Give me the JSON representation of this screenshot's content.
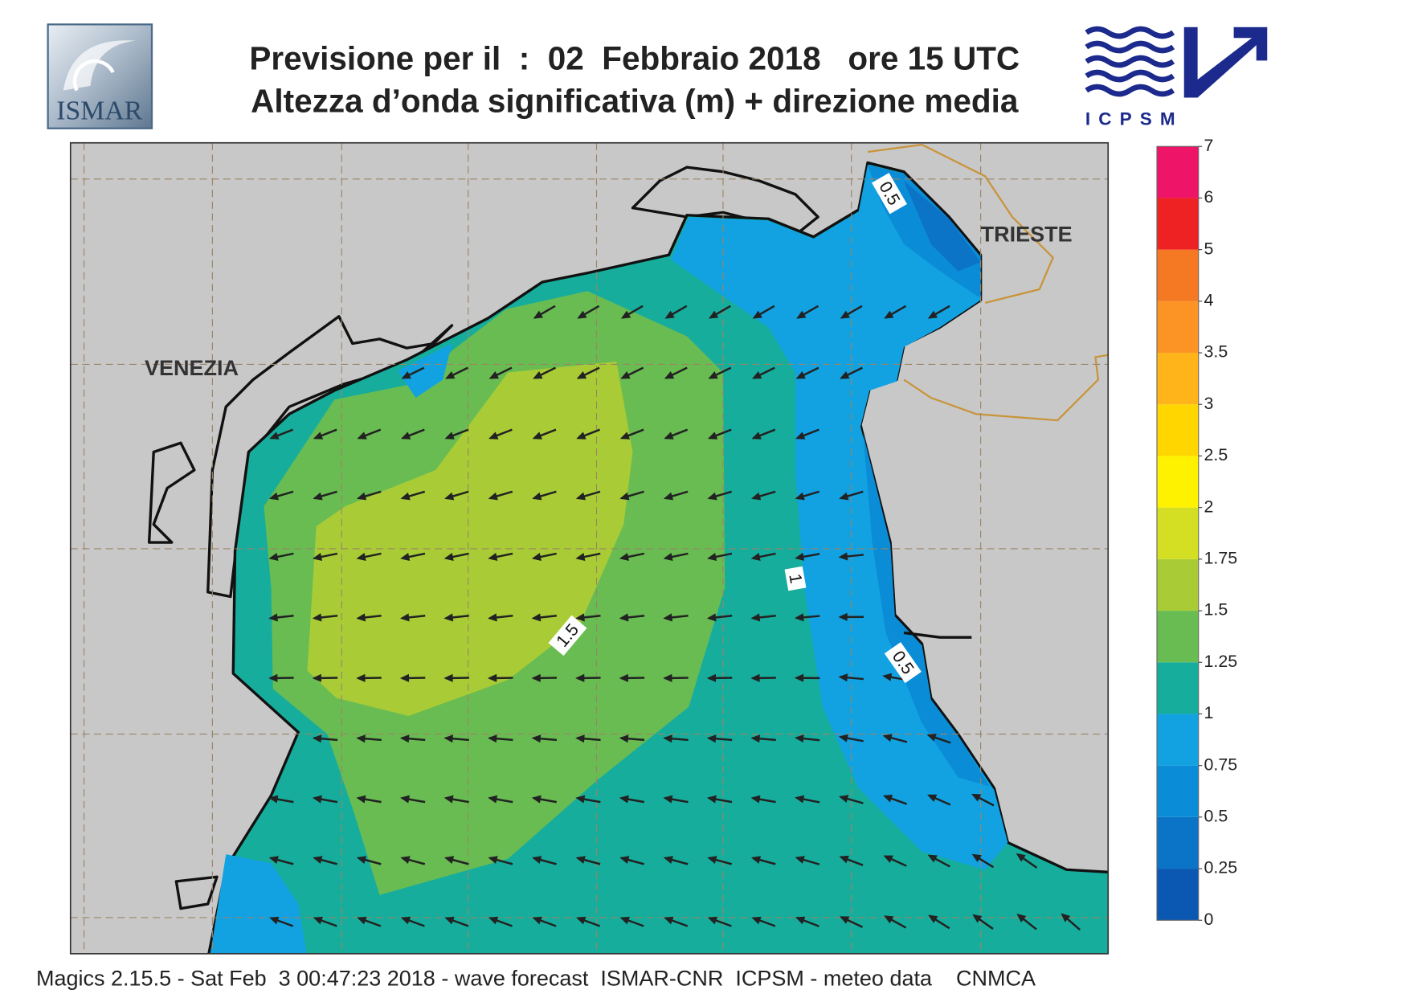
{
  "header": {
    "title_line1": "Previsione per il  :  02  Febbraio 2018   ore 15 UTC",
    "title_line2": "Altezza d’onda significativa (m) + direzione media",
    "logo_left": "ISMAR",
    "logo_right": "ICPSM"
  },
  "map": {
    "places": [
      "VENEZIA",
      "TRIESTE"
    ],
    "contour_labels": [
      0.5,
      1,
      1.5,
      0.5
    ]
  },
  "colorbar": {
    "levels": [
      0,
      0.25,
      0.5,
      0.75,
      1,
      1.25,
      1.5,
      1.75,
      2,
      2.5,
      3,
      3.5,
      4,
      5,
      6,
      7
    ],
    "colors": [
      "#0a58b2",
      "#0b74c6",
      "#0a8cd6",
      "#12a2e2",
      "#17ad9c",
      "#69bc52",
      "#a9cc36",
      "#d4de22",
      "#fff200",
      "#ffd600",
      "#ffb41a",
      "#fb9424",
      "#f57822",
      "#ee2222",
      "#ee1468"
    ]
  },
  "footer": "Magics 2.15.5 - Sat Feb  3 00:47:23 2018 - wave forecast  ISMAR-CNR  ICPSM - meteo data    CNMCA"
}
